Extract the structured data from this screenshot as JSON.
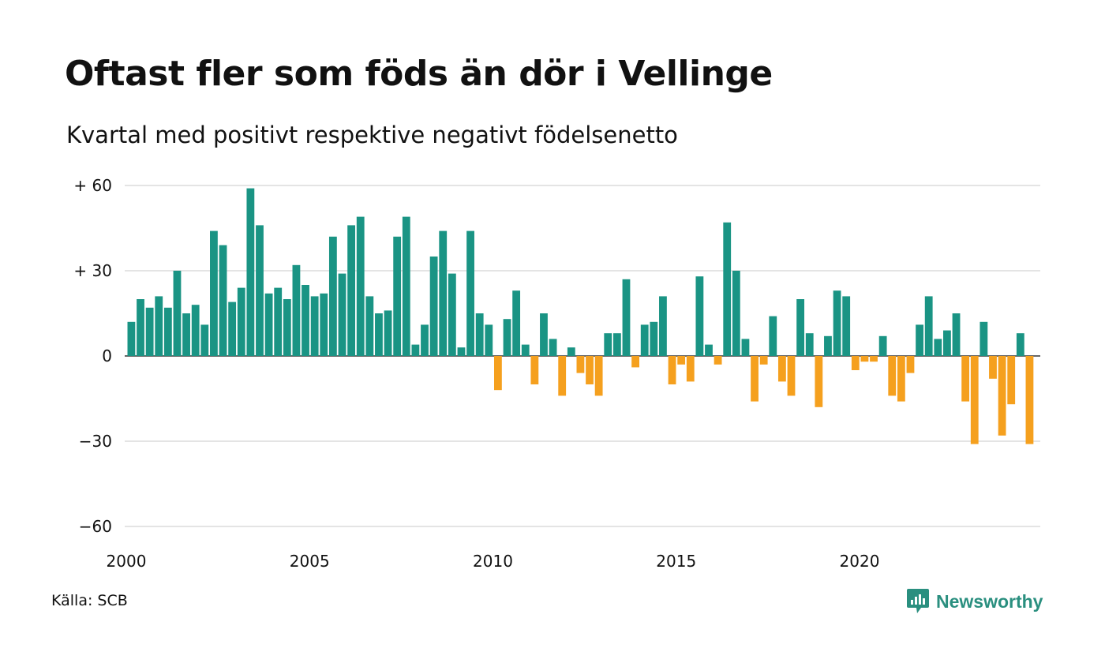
{
  "title": "Oftast fler som föds än dör i Vellinge",
  "subtitle": "Kvartal med positivt respektive negativt födelsenetto",
  "source": "Källa: SCB",
  "brand": {
    "name": "Newsworthy",
    "icon": "newsworthy-logo-icon",
    "color": "#2a8f7f"
  },
  "chart_data": {
    "type": "bar",
    "title": "Oftast fler som föds än dör i Vellinge",
    "subtitle": "Kvartal med positivt respektive negativt födelsenetto",
    "xlabel": "",
    "ylabel": "",
    "ylim": [
      -60,
      60
    ],
    "yticks": [
      60,
      30,
      0,
      -30,
      -60
    ],
    "ytick_labels": [
      "+ 60",
      "+ 30",
      "0",
      "−30",
      "−60"
    ],
    "xlim": [
      2000,
      2025
    ],
    "xticks": [
      2000,
      2005,
      2010,
      2015,
      2020
    ],
    "xtick_labels": [
      "2000",
      "2005",
      "2010",
      "2015",
      "2020"
    ],
    "grid": true,
    "colors": {
      "positive": "#1a9484",
      "negative": "#f5a01e",
      "grid": "#dcdcdc"
    },
    "series": [
      {
        "start": "2000 Q1",
        "values": [
          12,
          20,
          17,
          21,
          17,
          30,
          15,
          18,
          11,
          44,
          39,
          19,
          24,
          59,
          46,
          22,
          24,
          20,
          32,
          25,
          21,
          22,
          42,
          29,
          46,
          49,
          21,
          15,
          16,
          42,
          49,
          4,
          11,
          35,
          44,
          29,
          3,
          44,
          15,
          11,
          -12,
          13,
          23,
          4,
          -10,
          15,
          6,
          -14,
          3,
          -6,
          -10,
          -14,
          8,
          8,
          27,
          -4,
          11,
          12,
          21,
          -10,
          -3,
          -9,
          28,
          4,
          -3,
          47,
          30,
          6,
          -16,
          -3,
          14,
          -9,
          -14,
          20,
          8,
          -18,
          7,
          23,
          21,
          -5,
          -2,
          -2,
          7,
          -14,
          -16,
          -6,
          11,
          21,
          6,
          9,
          15,
          -16,
          -31,
          12,
          -8,
          -28,
          -17,
          8,
          -31
        ]
      }
    ]
  }
}
